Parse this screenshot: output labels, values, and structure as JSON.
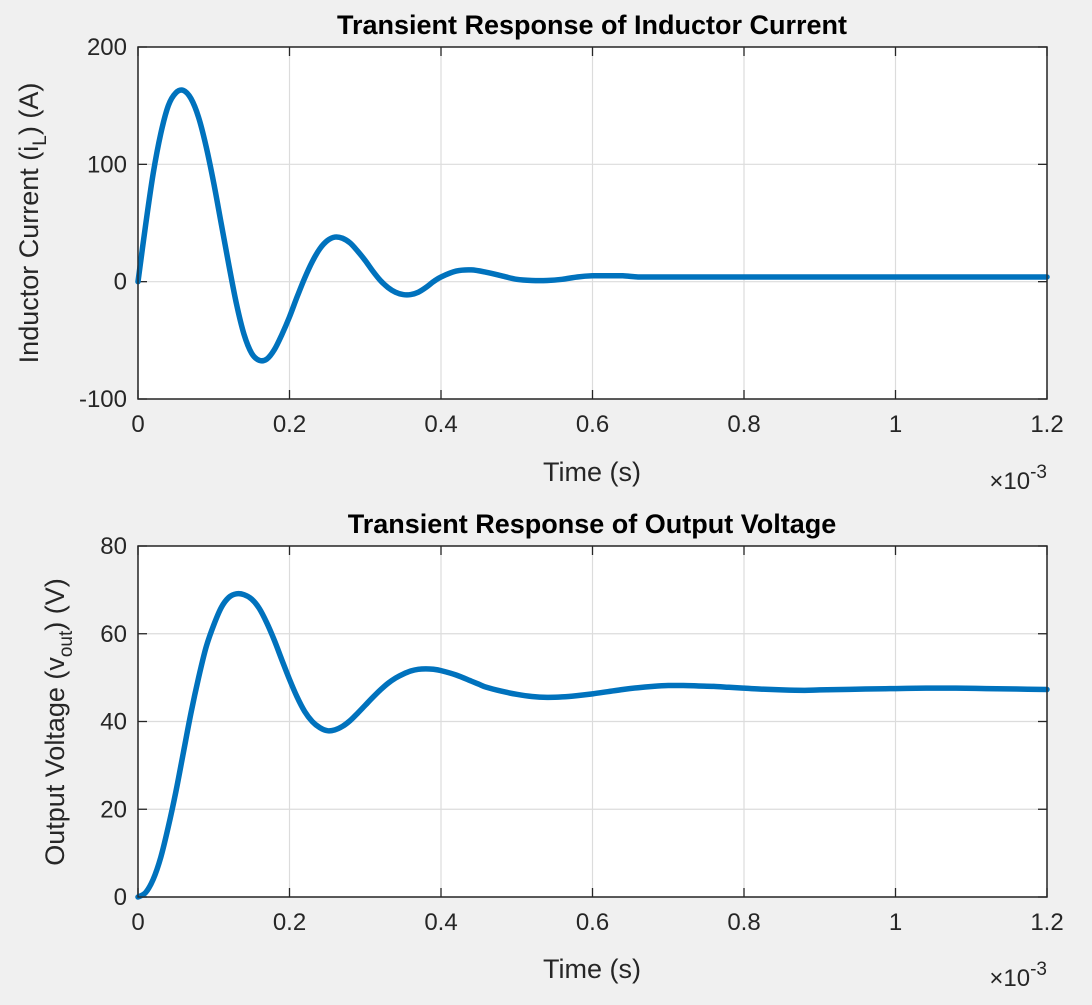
{
  "colors": {
    "series": "#0072bd",
    "background": "#f0f0f0",
    "axes": "#262626"
  },
  "chart_data": [
    {
      "type": "line",
      "title": "Transient Response of Inductor Current",
      "xlabel": "Time (s)",
      "ylabel": {
        "pre": "Inductor Current (i",
        "sub": "L",
        "post": ") (A)"
      },
      "xlim": [
        0,
        0.0012
      ],
      "ylim": [
        -100,
        200
      ],
      "xticks": [
        0,
        0.0002,
        0.0004,
        0.0006,
        0.0008,
        0.001,
        0.0012
      ],
      "xtick_labels": [
        "0",
        "0.2",
        "0.4",
        "0.6",
        "0.8",
        "1",
        "1.2"
      ],
      "yticks": [
        -100,
        0,
        100,
        200
      ],
      "ytick_labels": [
        "-100",
        "0",
        "100",
        "200"
      ],
      "x_exponent": {
        "base": "×10",
        "power": "-3"
      },
      "grid": true,
      "series": [
        {
          "x": [
            0,
            1e-05,
            2e-05,
            3e-05,
            4e-05,
            5e-05,
            6e-05,
            7e-05,
            8e-05,
            9e-05,
            0.0001,
            0.00011,
            0.00012,
            0.00013,
            0.00014,
            0.00015,
            0.00016,
            0.00017,
            0.00018,
            0.00019,
            0.0002,
            0.00021,
            0.00022,
            0.00023,
            0.00024,
            0.00025,
            0.00026,
            0.00027,
            0.00028,
            0.00029,
            0.0003,
            0.00031,
            0.00032,
            0.00033,
            0.00034,
            0.00035,
            0.00036,
            0.00037,
            0.00038,
            0.00039,
            0.0004,
            0.00042,
            0.00044,
            0.00046,
            0.00048,
            0.0005,
            0.00052,
            0.00054,
            0.00056,
            0.00058,
            0.0006,
            0.00062,
            0.00064,
            0.00066,
            0.00068,
            0.0007,
            0.00072,
            0.00074,
            0.00076,
            0.00078,
            0.0008,
            0.00082,
            0.00085,
            0.00088,
            0.0009,
            0.00093,
            0.00096,
            0.001,
            0.00104,
            0.00108,
            0.00112,
            0.00116,
            0.0012
          ],
          "y": [
            0,
            48,
            92,
            126,
            150,
            161,
            163,
            156,
            140,
            115,
            84,
            49,
            14,
            -19,
            -45,
            -61,
            -67,
            -66,
            -58,
            -45,
            -30,
            -13,
            3,
            17,
            28,
            35,
            38,
            37,
            33,
            26,
            18,
            9,
            1,
            -5,
            -9,
            -11,
            -11,
            -9,
            -5,
            0,
            4,
            9,
            10,
            8,
            5,
            2,
            1,
            1,
            2,
            4,
            5,
            5,
            5,
            4,
            4,
            4,
            4,
            4,
            4,
            4,
            4,
            4,
            4,
            4,
            4,
            4,
            4,
            4,
            4,
            4,
            4,
            4,
            4
          ]
        }
      ]
    },
    {
      "type": "line",
      "title": "Transient Response of Output Voltage",
      "xlabel": "Time (s)",
      "ylabel": {
        "pre": "Output Voltage (v",
        "sub": "out",
        "post": ") (V)"
      },
      "xlim": [
        0,
        0.0012
      ],
      "ylim": [
        0,
        80
      ],
      "xticks": [
        0,
        0.0002,
        0.0004,
        0.0006,
        0.0008,
        0.001,
        0.0012
      ],
      "xtick_labels": [
        "0",
        "0.2",
        "0.4",
        "0.6",
        "0.8",
        "1",
        "1.2"
      ],
      "yticks": [
        0,
        20,
        40,
        60,
        80
      ],
      "ytick_labels": [
        "0",
        "20",
        "40",
        "60",
        "80"
      ],
      "x_exponent": {
        "base": "×10",
        "power": "-3"
      },
      "grid": true,
      "series": [
        {
          "x": [
            0,
            1e-05,
            2e-05,
            3e-05,
            4e-05,
            5e-05,
            6e-05,
            7e-05,
            8e-05,
            9e-05,
            0.0001,
            0.00011,
            0.00012,
            0.00013,
            0.00014,
            0.00015,
            0.00016,
            0.00017,
            0.00018,
            0.00019,
            0.0002,
            0.00021,
            0.00022,
            0.00023,
            0.00024,
            0.00025,
            0.00026,
            0.00027,
            0.00028,
            0.00029,
            0.0003,
            0.00031,
            0.00032,
            0.00033,
            0.00034,
            0.00035,
            0.00036,
            0.00037,
            0.00038,
            0.00039,
            0.0004,
            0.00042,
            0.00044,
            0.00045,
            0.00046,
            0.00048,
            0.0005,
            0.00052,
            0.00054,
            0.00056,
            0.00058,
            0.0006,
            0.00062,
            0.00064,
            0.00066,
            0.00068,
            0.0007,
            0.00072,
            0.00074,
            0.00076,
            0.00078,
            0.0008,
            0.00082,
            0.00085,
            0.00088,
            0.0009,
            0.00093,
            0.00096,
            0.001,
            0.00104,
            0.00108,
            0.00112,
            0.00116,
            0.0012
          ],
          "y": [
            0,
            1,
            4,
            9,
            16,
            24,
            33,
            42,
            50,
            57,
            62,
            66,
            68.3,
            69.1,
            68.9,
            67.9,
            65.8,
            62.5,
            58.5,
            54,
            49.6,
            45.6,
            42.3,
            40,
            38.6,
            37.9,
            38.1,
            38.9,
            40.2,
            41.9,
            43.7,
            45.5,
            47.2,
            48.7,
            49.9,
            50.8,
            51.5,
            51.9,
            52,
            51.9,
            51.6,
            50.6,
            49.2,
            48.5,
            47.8,
            46.9,
            46.2,
            45.7,
            45.5,
            45.6,
            45.9,
            46.3,
            46.8,
            47.3,
            47.7,
            48.0,
            48.2,
            48.2,
            48.1,
            48.0,
            47.8,
            47.6,
            47.4,
            47.2,
            47.1,
            47.2,
            47.3,
            47.4,
            47.5,
            47.6,
            47.6,
            47.5,
            47.4,
            47.3
          ]
        }
      ]
    }
  ]
}
